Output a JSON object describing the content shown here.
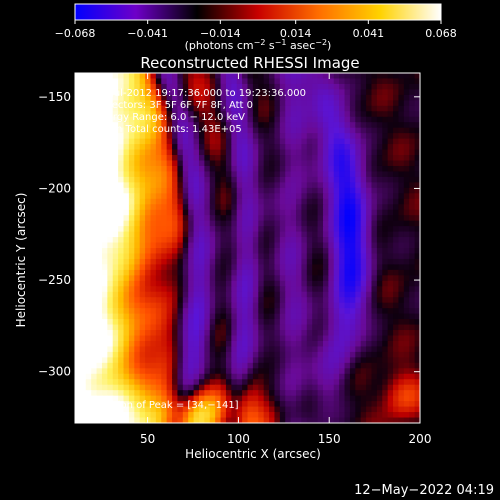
{
  "chart_data": {
    "type": "heatmap",
    "title": "Reconstructed RHESSI Image",
    "xlabel": "Heliocentric X (arcsec)",
    "ylabel": "Heliocentric Y (arcsec)",
    "xlim": [
      10,
      200
    ],
    "ylim": [
      -328,
      -137
    ],
    "x_ticks": [
      50,
      100,
      150,
      200
    ],
    "x_tick_labels": [
      "50",
      "100",
      "150",
      "200"
    ],
    "y_ticks": [
      -150,
      -200,
      -250,
      -300
    ],
    "y_tick_labels": [
      "−150",
      "−200",
      "−250",
      "−300"
    ],
    "colorbar": {
      "range": [
        -0.068,
        0.068
      ],
      "ticks": [
        -0.068,
        -0.041,
        -0.014,
        0.014,
        0.041,
        0.068
      ],
      "tick_labels": [
        "−0.068",
        "−0.041",
        "−0.014",
        "0.014",
        "0.041",
        "0.068"
      ],
      "unit_label": {
        "prefix": "(photons cm",
        "exp1": "−2",
        "mid": " s",
        "exp2": "−1",
        "mid2": " asec",
        "exp3": "−2",
        "suffix": ")"
      },
      "colormap": [
        "#0000ff",
        "#6e00c8",
        "#000000",
        "#c80000",
        "#ff6e00",
        "#ffd200",
        "#ffffff"
      ]
    },
    "annotations": [
      "11-Jul-2012 19:17:36.000 to 19:23:36.000",
      "Detectors: 3F 5F 6F 7F 8F, Att 0",
      "Energy Range: 6.0 − 12.0 keV",
      "Clean     Total counts: 1.43E+05"
    ],
    "peak_label": "Position of Peak = [34,−141]",
    "peak": [
      34,
      -141
    ]
  },
  "footer_timestamp": "12−May−2022 04:19"
}
